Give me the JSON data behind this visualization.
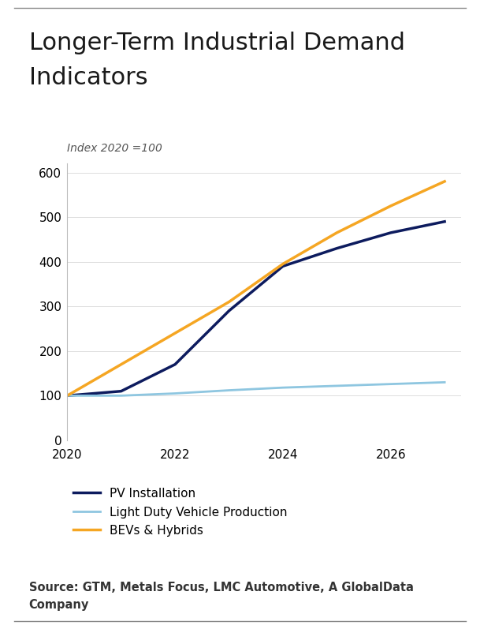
{
  "title_line1": "Longer-Term Industrial Demand",
  "title_line2": "Indicators",
  "ylabel": "Index 2020 =100",
  "source_line1": "Source: GTM, Metals Focus, LMC Automotive, A GlobalData",
  "source_line2": "Company",
  "xlim": [
    2020,
    2027.3
  ],
  "ylim": [
    0,
    620
  ],
  "yticks": [
    0,
    100,
    200,
    300,
    400,
    500,
    600
  ],
  "xticks": [
    2020,
    2022,
    2024,
    2026
  ],
  "series": {
    "PV Installation": {
      "x": [
        2020,
        2021,
        2022,
        2023,
        2024,
        2025,
        2026,
        2027
      ],
      "y": [
        100,
        110,
        170,
        290,
        390,
        430,
        465,
        490
      ],
      "color": "#0d1b5e",
      "linewidth": 2.5
    },
    "Light Duty Vehicle Production": {
      "x": [
        2020,
        2021,
        2022,
        2023,
        2024,
        2025,
        2026,
        2027
      ],
      "y": [
        100,
        100,
        105,
        112,
        118,
        122,
        126,
        130
      ],
      "color": "#8ec6e0",
      "linewidth": 2.0
    },
    "BEVs & Hybrids": {
      "x": [
        2020,
        2021,
        2022,
        2023,
        2024,
        2025,
        2026,
        2027
      ],
      "y": [
        100,
        170,
        240,
        310,
        395,
        465,
        525,
        580
      ],
      "color": "#f5a623",
      "linewidth": 2.5
    }
  },
  "background_color": "#ffffff",
  "title_fontsize": 22,
  "label_fontsize": 10,
  "tick_fontsize": 11,
  "legend_fontsize": 11,
  "source_fontsize": 10.5
}
